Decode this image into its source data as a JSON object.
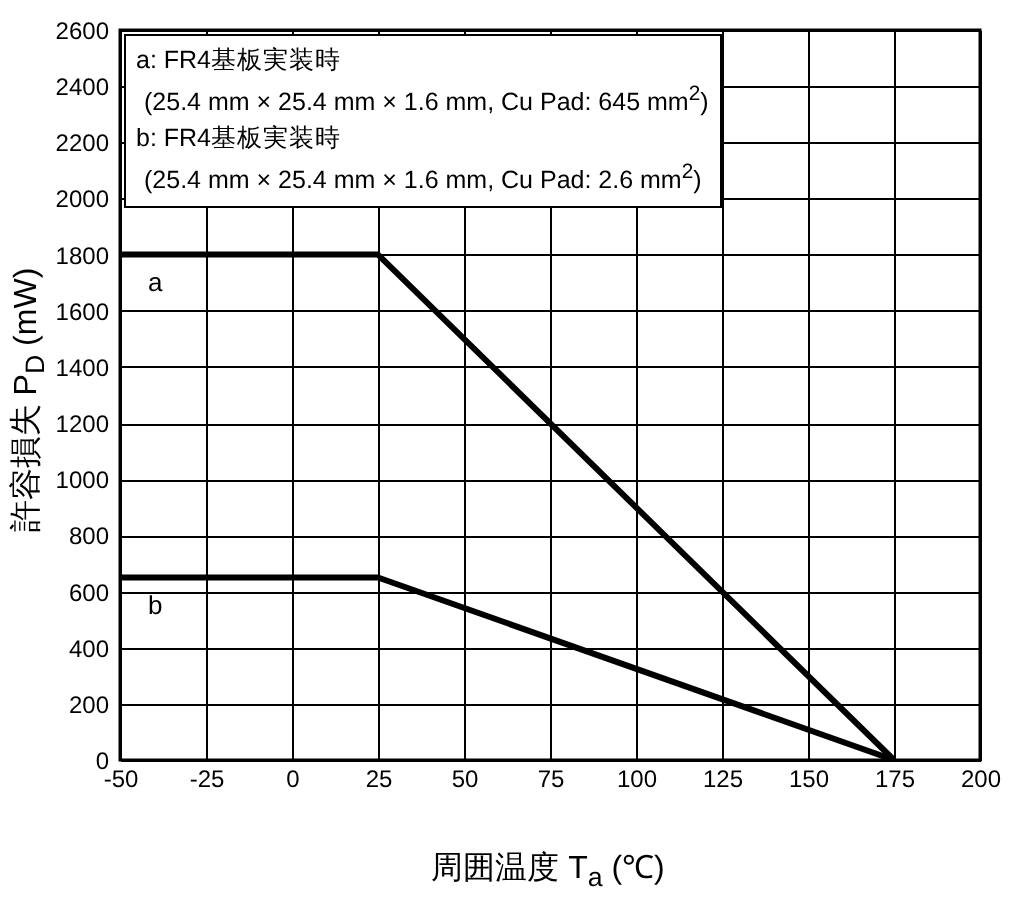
{
  "chart_data": {
    "type": "line",
    "xlabel": "周囲温度 T$_{a}$ (℃)",
    "ylabel": "許容損失 P$_{D}$ (mW)",
    "x": [
      -50,
      25,
      175
    ],
    "series": [
      {
        "name": "a",
        "color": "#000000",
        "values": [
          1800,
          1800,
          0
        ]
      },
      {
        "name": "b",
        "color": "#000000",
        "values": [
          650,
          650,
          0
        ]
      }
    ],
    "xlim": [
      -50,
      200
    ],
    "xticks": [
      -50,
      -25,
      0,
      25,
      50,
      75,
      100,
      125,
      150,
      175,
      200
    ],
    "ylim": [
      0,
      2600
    ],
    "yticks": [
      0,
      200,
      400,
      600,
      800,
      1000,
      1200,
      1400,
      1600,
      1800,
      2000,
      2200,
      2400,
      2600
    ],
    "grid": true,
    "line_style": "solid",
    "marker": "none",
    "annotations": [
      "a: FR4基板実装時",
      "(25.4 mm × 25.4 mm × 1.6 mm, Cu Pad: 645 mm$^{2}$)",
      "b: FR4基板実装時",
      "(25.4 mm × 25.4 mm × 1.6 mm, Cu Pad: 2.6 mm$^{2}$)"
    ]
  }
}
